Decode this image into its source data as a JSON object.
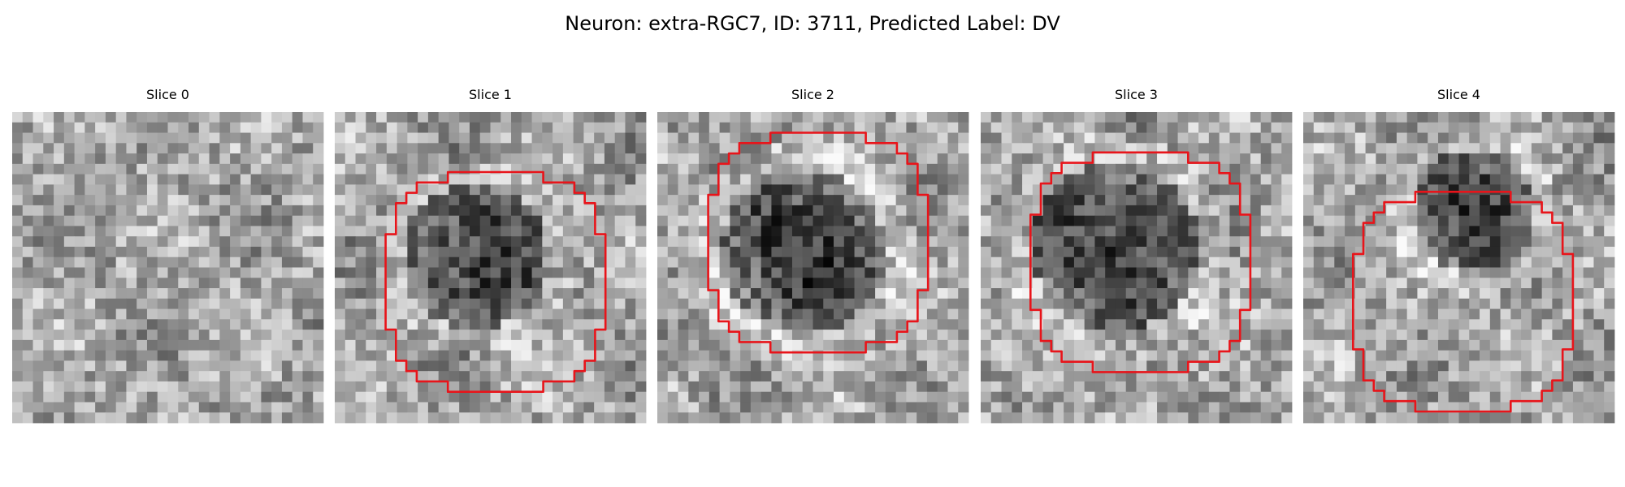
{
  "title": "Neuron: extra-RGC7, ID: 3711, Predicted Label: DV",
  "panels": [
    {
      "title": "Slice 0"
    },
    {
      "title": "Slice 1"
    },
    {
      "title": "Slice 2"
    },
    {
      "title": "Slice 3"
    },
    {
      "title": "Slice 4"
    }
  ]
}
